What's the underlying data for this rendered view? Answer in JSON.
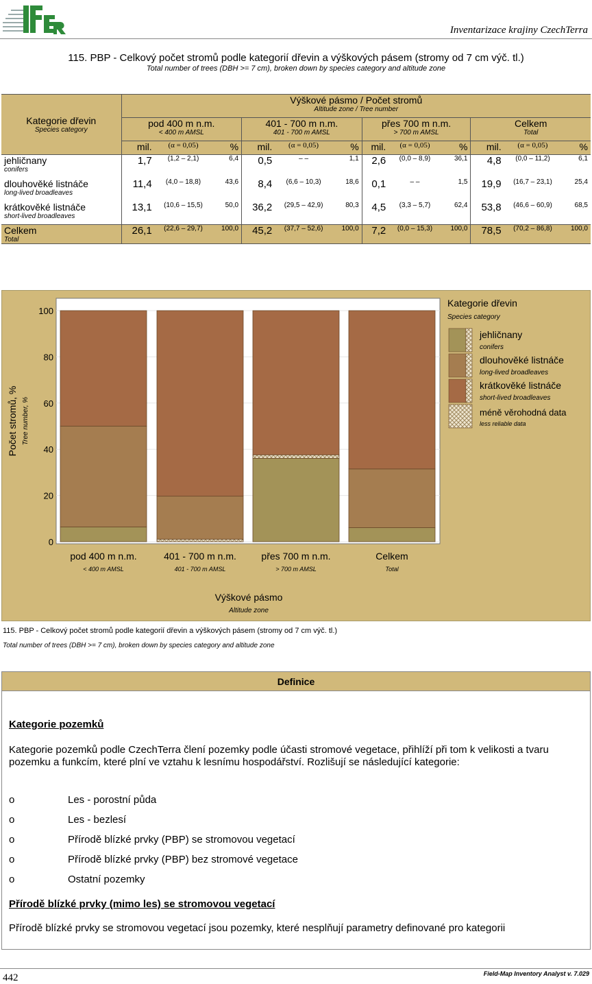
{
  "header": {
    "logo_text": "IFER",
    "title": "Inventarizace krajiny CzechTerra"
  },
  "title": "115. PBP - Celkový počet stromů podle kategorií dřevin a výškových pásem (stromy od 7 cm výč. tl.)",
  "subtitle": "Total number of trees (DBH >= 7 cm), broken down by species category and altitude zone",
  "table": {
    "cat_header": "Kategorie dřevin",
    "cat_header_en": "Species category",
    "group_header": "Výškové pásmo / Počet stromů",
    "group_header_en": "Altitude zone / Tree number",
    "zones": [
      {
        "label": "pod 400 m n.m.",
        "en": "< 400 m AMSL"
      },
      {
        "label": "401 - 700 m n.m.",
        "en": "401 - 700 m AMSL"
      },
      {
        "label": "přes 700 m n.m.",
        "en": "> 700 m AMSL"
      },
      {
        "label": "Celkem",
        "en": "Total"
      }
    ],
    "sub": {
      "mil": "mil.",
      "ci": "(α = 0,05)",
      "pct": "%"
    },
    "rows": [
      {
        "label": "jehličnany",
        "en": "conifers",
        "cells": [
          [
            "1,7",
            "(1,2 – 2,1)",
            "6,4"
          ],
          [
            "0,5",
            "–      –",
            "1,1"
          ],
          [
            "2,6",
            "(0,0 – 8,9)",
            "36,1"
          ],
          [
            "4,8",
            "(0,0 – 11,2)",
            "6,1"
          ]
        ]
      },
      {
        "label": "dlouhověké listnáče",
        "en": "long-lived broadleaves",
        "cells": [
          [
            "11,4",
            "(4,0 – 18,8)",
            "43,6"
          ],
          [
            "8,4",
            "(6,6 – 10,3)",
            "18,6"
          ],
          [
            "0,1",
            "–      –",
            "1,5"
          ],
          [
            "19,9",
            "(16,7 – 23,1)",
            "25,4"
          ]
        ]
      },
      {
        "label": "krátkověké listnáče",
        "en": "short-lived broadleaves",
        "cells": [
          [
            "13,1",
            "(10,6 – 15,5)",
            "50,0"
          ],
          [
            "36,2",
            "(29,5 – 42,9)",
            "80,3"
          ],
          [
            "4,5",
            "(3,3 – 5,7)",
            "62,4"
          ],
          [
            "53,8",
            "(46,6 – 60,9)",
            "68,5"
          ]
        ]
      },
      {
        "label": "Celkem",
        "en": "Total",
        "cells": [
          [
            "26,1",
            "(22,6 – 29,7)",
            "100,0"
          ],
          [
            "45,2",
            "(37,7 – 52,6)",
            "100,0"
          ],
          [
            "7,2",
            "(0,0 – 15,3)",
            "100,0"
          ],
          [
            "78,5",
            "(70,2 – 86,8)",
            "100,0"
          ]
        ]
      }
    ]
  },
  "chart_data": {
    "type": "bar",
    "stacked": true,
    "categories": [
      {
        "label": "pod 400 m n.m.",
        "en": "< 400 m AMSL"
      },
      {
        "label": "401 - 700 m n.m.",
        "en": "401 - 700 m AMSL"
      },
      {
        "label": "přes 700 m n.m.",
        "en": "> 700 m AMSL"
      },
      {
        "label": "Celkem",
        "en": "Total"
      }
    ],
    "series": [
      {
        "name": "jehličnany",
        "en": "conifers",
        "color": "#a39358",
        "values": [
          6.4,
          1.1,
          36.1,
          6.1
        ],
        "less_reliable": [
          false,
          true,
          false,
          false
        ]
      },
      {
        "name": "dlouhověké listnáče",
        "en": "long-lived broadleaves",
        "color": "#a57d50",
        "values": [
          43.6,
          18.6,
          1.5,
          25.4
        ],
        "less_reliable": [
          false,
          false,
          true,
          false
        ]
      },
      {
        "name": "krátkověké listnáče",
        "en": "short-lived broadleaves",
        "color": "#a56a45",
        "values": [
          50.0,
          80.3,
          62.4,
          68.5
        ],
        "less_reliable": [
          false,
          false,
          false,
          false
        ]
      }
    ],
    "less_reliable_legend": {
      "label": "méně věrohodná data",
      "en": "less reliable data"
    },
    "legend_title": "Kategorie dřevin",
    "legend_title_en": "Species category",
    "legend_placement": "right",
    "ylabel": "Počet stromů, %",
    "ylabel_en": "Tree number, %",
    "xlabel": "Výškové pásmo",
    "xlabel_en": "Altitude zone",
    "ylim": [
      0,
      100
    ],
    "yticks": [
      0,
      20,
      40,
      60,
      80,
      100
    ],
    "grid": true
  },
  "caption": "115. PBP - Celkový počet stromů podle kategorií dřevin a výškových pásem (stromy od 7 cm výč. tl.)",
  "caption_en": "Total number of trees (DBH >= 7 cm), broken down by species category and altitude zone",
  "definition": {
    "header": "Definice",
    "h1": "Kategorie pozemků",
    "p1": "Kategorie pozemků podle CzechTerra člení pozemky podle účasti stromové vegetace, přihlíží při tom k velikosti a tvaru pozemku a funkcím, které plní ve vztahu k lesnímu hospodářství. Rozlišují se následující kategorie:",
    "bullet": "o",
    "items": [
      "Les - porostní půda",
      "Les - bezlesí",
      "Přírodě blízké prvky (PBP) se stromovou vegetací",
      "Přírodě blízké prvky (PBP) bez stromové vegetace",
      "Ostatní pozemky"
    ],
    "h2": "Přírodě blízké prvky (mimo les) se stromovou vegetací",
    "p2": "Přírodě blízké prvky se stromovou vegetací jsou pozemky, které nesplňují parametry definované pro kategorii"
  },
  "footer": {
    "page": "442",
    "software": "Field-Map Inventory Analyst v. 7.029"
  }
}
